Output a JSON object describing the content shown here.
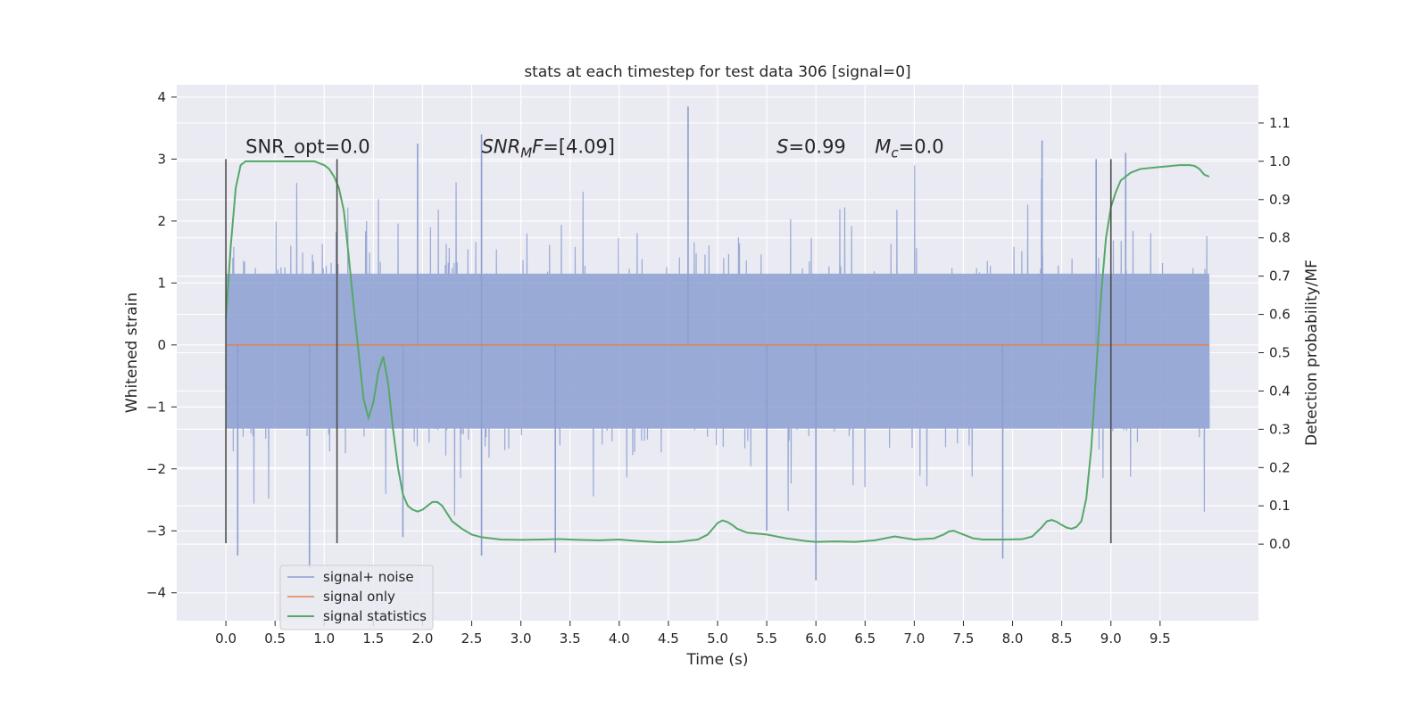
{
  "chart_data": {
    "type": "line",
    "title": "stats at each timestep for test data 306 [signal=0]",
    "xlabel": "Time (s)",
    "ylabel": "Whitened strain",
    "ylabel_right": "Detection probability/MF",
    "xlim": [
      -0.5,
      10.5
    ],
    "ylim": [
      -4.45,
      4.2
    ],
    "ylim_right": [
      -0.2,
      1.2
    ],
    "x_ticks": [
      0.0,
      0.5,
      1.0,
      1.5,
      2.0,
      2.5,
      3.0,
      3.5,
      4.0,
      4.5,
      5.0,
      5.5,
      6.0,
      6.5,
      7.0,
      7.5,
      8.0,
      8.5,
      9.0,
      9.5
    ],
    "x_tick_labels": [
      "0.0",
      "0.5",
      "1.0",
      "1.5",
      "2.0",
      "2.5",
      "3.0",
      "3.5",
      "4.0",
      "4.5",
      "5.0",
      "5.5",
      "6.0",
      "6.5",
      "7.0",
      "7.5",
      "8.0",
      "8.5",
      "9.0",
      "9.5"
    ],
    "y_ticks": [
      4,
      3,
      2,
      1,
      0,
      -1,
      -2,
      -3,
      -4
    ],
    "y_tick_labels": [
      "4",
      "3",
      "2",
      "1",
      "0",
      "−1",
      "−2",
      "−3",
      "−4"
    ],
    "y_right_ticks": [
      1.1,
      1.0,
      0.9,
      0.8,
      0.7,
      0.6,
      0.5,
      0.4,
      0.3,
      0.2,
      0.1,
      0.0
    ],
    "y_right_tick_labels": [
      "1.1",
      "1.0",
      "0.9",
      "0.8",
      "0.7",
      "0.6",
      "0.5",
      "0.4",
      "0.3",
      "0.2",
      "0.1",
      "0.0"
    ],
    "grid": true,
    "legend_position": "lower-left",
    "vertical_lines": [
      {
        "x": 0.0,
        "y0": -3.2,
        "y1": 3.0
      },
      {
        "x": 1.13,
        "y0": -3.2,
        "y1": 3.0
      },
      {
        "x": 9.0,
        "y0": -3.2,
        "y1": 3.0
      }
    ],
    "annotations": [
      {
        "id": "snr-opt",
        "parts": [
          {
            "text": "SNR_opt=0.0",
            "style": "normal"
          }
        ],
        "x": 0.2,
        "y": 3.1
      },
      {
        "id": "snr-mf",
        "parts": [
          {
            "text": "SNR",
            "style": "italic"
          },
          {
            "text": "M",
            "style": "italic-sub"
          },
          {
            "text": "F",
            "style": "italic"
          },
          {
            "text": "=[4.09]",
            "style": "normal"
          }
        ],
        "x": 2.6,
        "y": 3.1
      },
      {
        "id": "s-val",
        "parts": [
          {
            "text": "S",
            "style": "italic"
          },
          {
            "text": "=0.99",
            "style": "normal"
          }
        ],
        "x": 5.6,
        "y": 3.1
      },
      {
        "id": "mc-val",
        "parts": [
          {
            "text": "M",
            "style": "italic"
          },
          {
            "text": "c",
            "style": "italic-sub"
          },
          {
            "text": "=0.0",
            "style": "normal"
          }
        ],
        "x": 6.6,
        "y": 3.1
      }
    ],
    "series": [
      {
        "name": "signal+ noise",
        "color": "#8c9fd1",
        "axis": "left",
        "style": "noise",
        "x_range": [
          0.0,
          10.0
        ],
        "envelope": [
          1.15,
          -1.35
        ],
        "typical_peak": 2.3,
        "spikes": [
          {
            "x": 4.7,
            "y": 3.85
          },
          {
            "x": 1.95,
            "y": 3.25
          },
          {
            "x": 2.6,
            "y": 3.4
          },
          {
            "x": 8.3,
            "y": 3.3
          },
          {
            "x": 8.85,
            "y": 3.0
          },
          {
            "x": 9.15,
            "y": 3.1
          },
          {
            "x": 0.12,
            "y": -3.4
          },
          {
            "x": 0.85,
            "y": -3.6
          },
          {
            "x": 2.6,
            "y": -3.4
          },
          {
            "x": 3.35,
            "y": -3.35
          },
          {
            "x": 6.0,
            "y": -3.8
          },
          {
            "x": 7.9,
            "y": -3.45
          },
          {
            "x": 1.8,
            "y": -3.1
          },
          {
            "x": 5.5,
            "y": -3.0
          }
        ]
      },
      {
        "name": "signal only",
        "color": "#dd8452",
        "axis": "left",
        "x": [
          0.0,
          10.0
        ],
        "y": [
          0.0,
          0.0
        ]
      },
      {
        "name": "signal statistics",
        "color": "#55a868",
        "axis": "right",
        "x": [
          0.0,
          0.05,
          0.1,
          0.15,
          0.2,
          0.3,
          0.4,
          0.5,
          0.6,
          0.7,
          0.8,
          0.9,
          1.0,
          1.05,
          1.1,
          1.15,
          1.2,
          1.25,
          1.3,
          1.35,
          1.4,
          1.45,
          1.5,
          1.55,
          1.6,
          1.65,
          1.7,
          1.75,
          1.8,
          1.85,
          1.9,
          1.95,
          2.0,
          2.05,
          2.1,
          2.15,
          2.2,
          2.25,
          2.3,
          2.4,
          2.5,
          2.6,
          2.7,
          2.8,
          3.0,
          3.2,
          3.4,
          3.6,
          3.8,
          4.0,
          4.2,
          4.4,
          4.6,
          4.8,
          4.9,
          4.95,
          5.0,
          5.05,
          5.1,
          5.15,
          5.2,
          5.3,
          5.5,
          5.7,
          5.9,
          6.0,
          6.2,
          6.4,
          6.6,
          6.8,
          7.0,
          7.2,
          7.3,
          7.35,
          7.4,
          7.5,
          7.6,
          7.7,
          7.9,
          8.1,
          8.2,
          8.3,
          8.35,
          8.4,
          8.45,
          8.5,
          8.55,
          8.6,
          8.65,
          8.7,
          8.75,
          8.8,
          8.85,
          8.9,
          8.95,
          9.0,
          9.05,
          9.1,
          9.2,
          9.3,
          9.5,
          9.7,
          9.8,
          9.85,
          9.9,
          9.95,
          10.0
        ],
        "y": [
          0.59,
          0.78,
          0.93,
          0.99,
          1.0,
          1.0,
          1.0,
          1.0,
          1.0,
          1.0,
          1.0,
          1.0,
          0.99,
          0.98,
          0.96,
          0.93,
          0.87,
          0.75,
          0.62,
          0.5,
          0.38,
          0.33,
          0.37,
          0.45,
          0.49,
          0.42,
          0.3,
          0.2,
          0.13,
          0.1,
          0.09,
          0.085,
          0.09,
          0.1,
          0.11,
          0.11,
          0.1,
          0.08,
          0.06,
          0.04,
          0.025,
          0.018,
          0.015,
          0.012,
          0.011,
          0.012,
          0.013,
          0.011,
          0.01,
          0.012,
          0.008,
          0.005,
          0.006,
          0.012,
          0.025,
          0.04,
          0.055,
          0.062,
          0.058,
          0.05,
          0.04,
          0.03,
          0.025,
          0.015,
          0.008,
          0.006,
          0.007,
          0.006,
          0.01,
          0.02,
          0.012,
          0.015,
          0.025,
          0.033,
          0.035,
          0.025,
          0.015,
          0.012,
          0.012,
          0.013,
          0.02,
          0.045,
          0.06,
          0.063,
          0.058,
          0.05,
          0.043,
          0.04,
          0.045,
          0.06,
          0.12,
          0.25,
          0.45,
          0.65,
          0.8,
          0.88,
          0.92,
          0.95,
          0.97,
          0.98,
          0.985,
          0.99,
          0.99,
          0.988,
          0.98,
          0.965,
          0.96
        ]
      }
    ]
  }
}
